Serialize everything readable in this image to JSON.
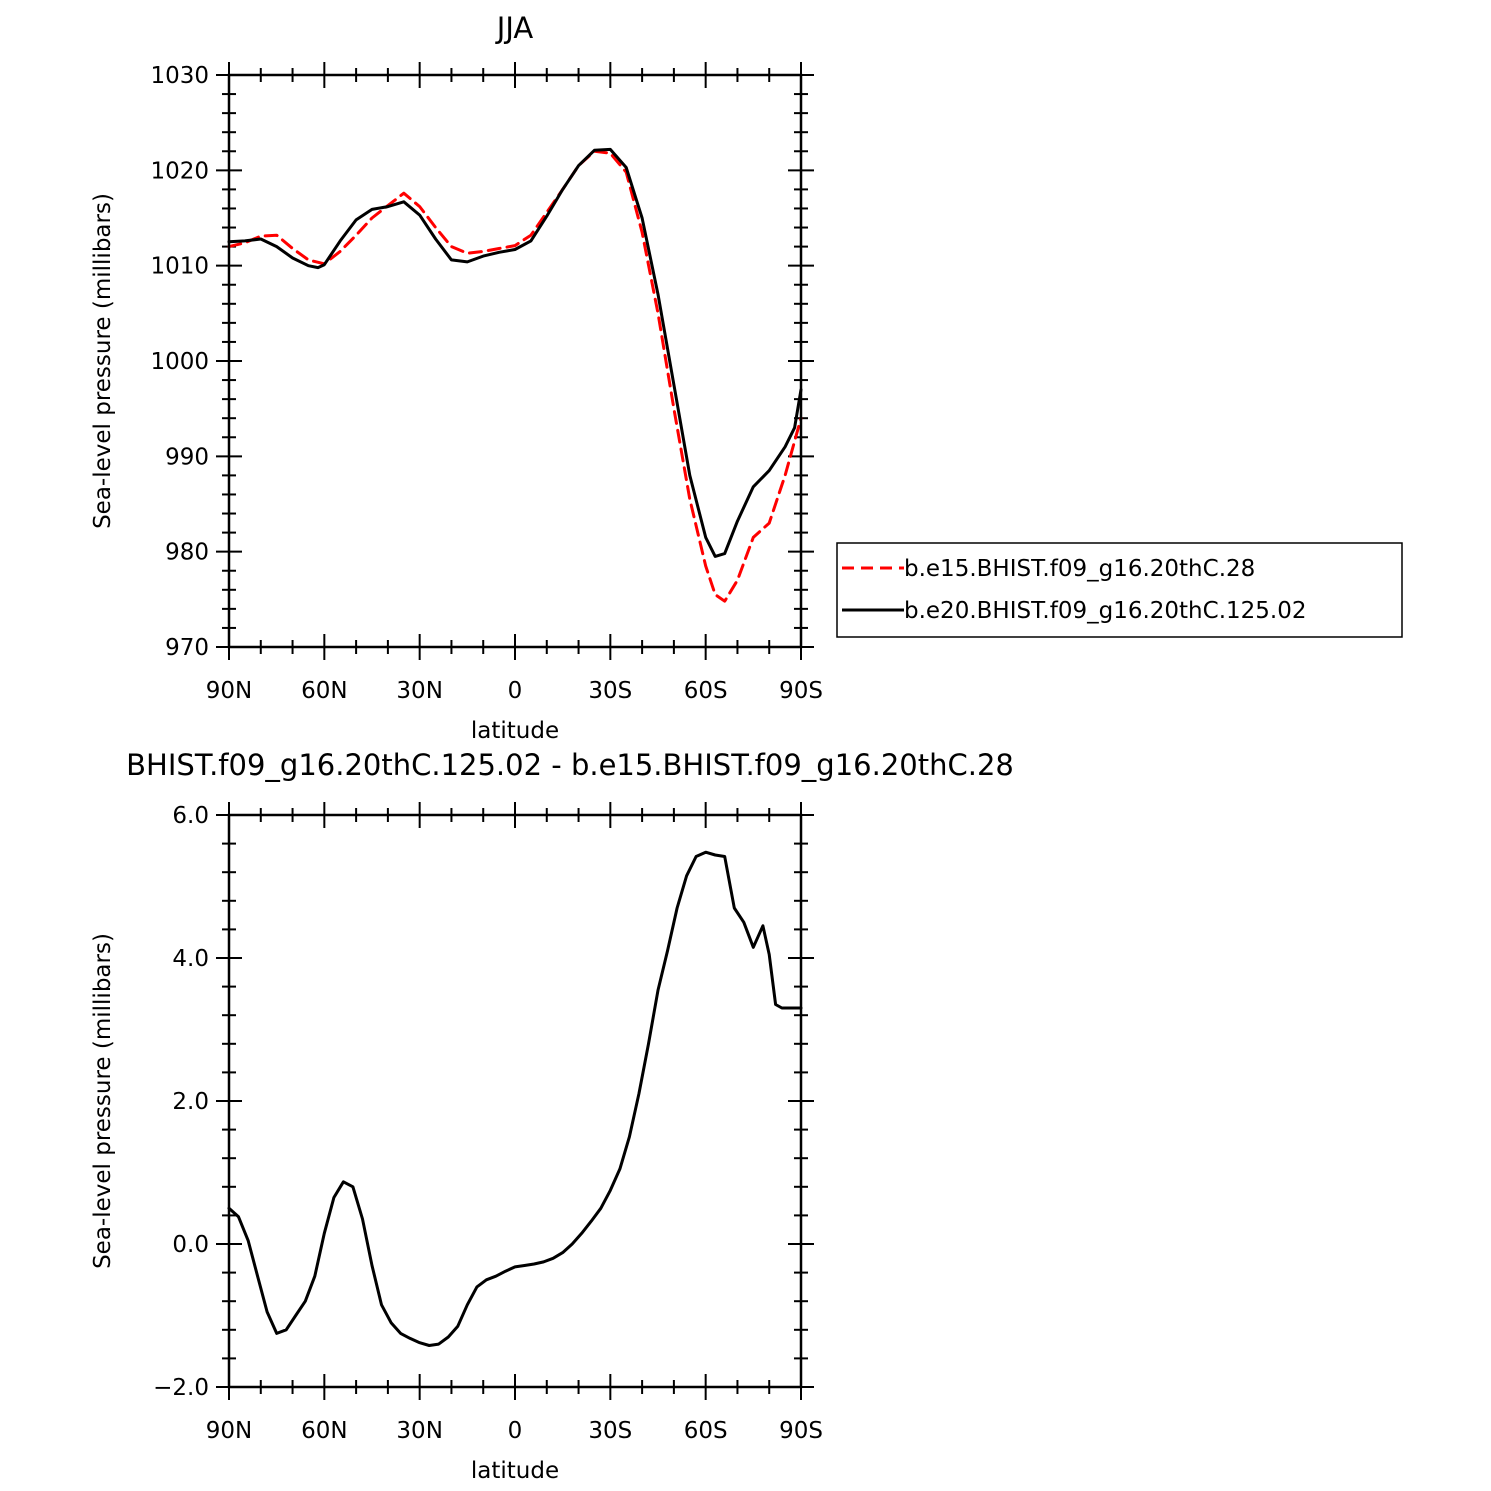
{
  "chart_data": [
    {
      "type": "line",
      "title": "JJA",
      "xlabel": "latitude",
      "ylabel": "Sea-level pressure (millibars)",
      "xlim": [
        90,
        -90
      ],
      "ylim": [
        970,
        1030
      ],
      "xticks": [
        90,
        60,
        30,
        0,
        -30,
        -60,
        -90
      ],
      "xtick_labels": [
        "90N",
        "60N",
        "30N",
        "0",
        "30S",
        "60S",
        "90S"
      ],
      "yticks": [
        970,
        980,
        990,
        1000,
        1010,
        1020,
        1030
      ],
      "ytick_labels": [
        "970",
        "980",
        "990",
        "1000",
        "1010",
        "1020",
        "1030"
      ],
      "grid": false,
      "legend_position": "right",
      "series": [
        {
          "name": "b.e15.BHIST.f09_g16.20thC.28",
          "color": "#ff0000",
          "dash": "dashed",
          "x": [
            90,
            85,
            80,
            75,
            70,
            65,
            60,
            55,
            50,
            45,
            40,
            35,
            30,
            25,
            20,
            15,
            10,
            5,
            0,
            -5,
            -10,
            -15,
            -20,
            -25,
            -30,
            -35,
            -40,
            -45,
            -50,
            -55,
            -60,
            -63,
            -66,
            -70,
            -75,
            -80,
            -85,
            -90
          ],
          "y": [
            1012.0,
            1012.4,
            1013.1,
            1013.2,
            1011.8,
            1010.6,
            1010.2,
            1011.5,
            1013.2,
            1015.0,
            1016.3,
            1017.6,
            1016.2,
            1014.0,
            1012.0,
            1011.3,
            1011.5,
            1011.8,
            1012.1,
            1013.2,
            1015.6,
            1018.0,
            1020.5,
            1022.0,
            1021.8,
            1019.8,
            1013.5,
            1005.0,
            995.0,
            985.5,
            978.5,
            975.5,
            974.8,
            977.0,
            981.5,
            983.0,
            988.0,
            994.0
          ]
        },
        {
          "name": "b.e20.BHIST.f09_g16.20thC.125.02",
          "color": "#000000",
          "dash": "solid",
          "x": [
            90,
            85,
            80,
            75,
            70,
            65,
            62,
            60,
            55,
            50,
            45,
            40,
            35,
            30,
            25,
            20,
            15,
            10,
            5,
            0,
            -5,
            -10,
            -15,
            -20,
            -25,
            -30,
            -35,
            -40,
            -45,
            -50,
            -55,
            -60,
            -63,
            -66,
            -70,
            -75,
            -80,
            -85,
            -88,
            -90
          ],
          "y": [
            1012.5,
            1012.6,
            1012.8,
            1012.0,
            1010.8,
            1010.0,
            1009.8,
            1010.1,
            1012.6,
            1014.8,
            1015.9,
            1016.2,
            1016.7,
            1015.3,
            1012.8,
            1010.6,
            1010.4,
            1011.0,
            1011.4,
            1011.7,
            1012.6,
            1015.2,
            1018.0,
            1020.5,
            1022.1,
            1022.2,
            1020.3,
            1015.0,
            1007.0,
            997.5,
            988.0,
            981.5,
            979.5,
            979.8,
            983.2,
            986.8,
            988.5,
            991.0,
            993.0,
            997.0
          ]
        }
      ]
    },
    {
      "type": "line",
      "title": "BHIST.f09_g16.20thC.125.02 - b.e15.BHIST.f09_g16.20thC.28",
      "xlabel": "latitude",
      "ylabel": "Sea-level pressure (millibars)",
      "xlim": [
        90,
        -90
      ],
      "ylim": [
        -2.0,
        6.0
      ],
      "xticks": [
        90,
        60,
        30,
        0,
        -30,
        -60,
        -90
      ],
      "xtick_labels": [
        "90N",
        "60N",
        "30N",
        "0",
        "30S",
        "60S",
        "90S"
      ],
      "yticks": [
        -2.0,
        0.0,
        2.0,
        4.0,
        6.0
      ],
      "ytick_labels": [
        "−2.0",
        "0.0",
        "2.0",
        "4.0",
        "6.0"
      ],
      "grid": false,
      "series": [
        {
          "color": "#000000",
          "dash": "solid",
          "x": [
            90,
            87,
            84,
            81,
            78,
            75,
            72,
            69,
            66,
            63,
            60,
            57,
            54,
            51,
            48,
            45,
            42,
            39,
            36,
            33,
            30,
            27,
            24,
            21,
            18,
            15,
            12,
            9,
            6,
            3,
            0,
            -3,
            -6,
            -9,
            -12,
            -15,
            -18,
            -21,
            -24,
            -27,
            -30,
            -33,
            -36,
            -39,
            -42,
            -45,
            -48,
            -51,
            -54,
            -57,
            -60,
            -63,
            -66,
            -69,
            -72,
            -75,
            -78,
            -80,
            -82,
            -84,
            -86,
            -88,
            -90
          ],
          "y": [
            0.5,
            0.38,
            0.05,
            -0.45,
            -0.95,
            -1.25,
            -1.2,
            -1.0,
            -0.8,
            -0.45,
            0.15,
            0.65,
            0.87,
            0.8,
            0.35,
            -0.3,
            -0.85,
            -1.1,
            -1.25,
            -1.32,
            -1.38,
            -1.42,
            -1.4,
            -1.3,
            -1.15,
            -0.85,
            -0.6,
            -0.5,
            -0.45,
            -0.38,
            -0.32,
            -0.3,
            -0.28,
            -0.25,
            -0.2,
            -0.12,
            0.0,
            0.15,
            0.32,
            0.5,
            0.75,
            1.05,
            1.5,
            2.1,
            2.8,
            3.55,
            4.1,
            4.7,
            5.15,
            5.42,
            5.48,
            5.44,
            5.42,
            4.7,
            4.5,
            4.15,
            4.45,
            4.05,
            3.35,
            3.3,
            3.3,
            3.3,
            3.3
          ]
        }
      ]
    }
  ]
}
